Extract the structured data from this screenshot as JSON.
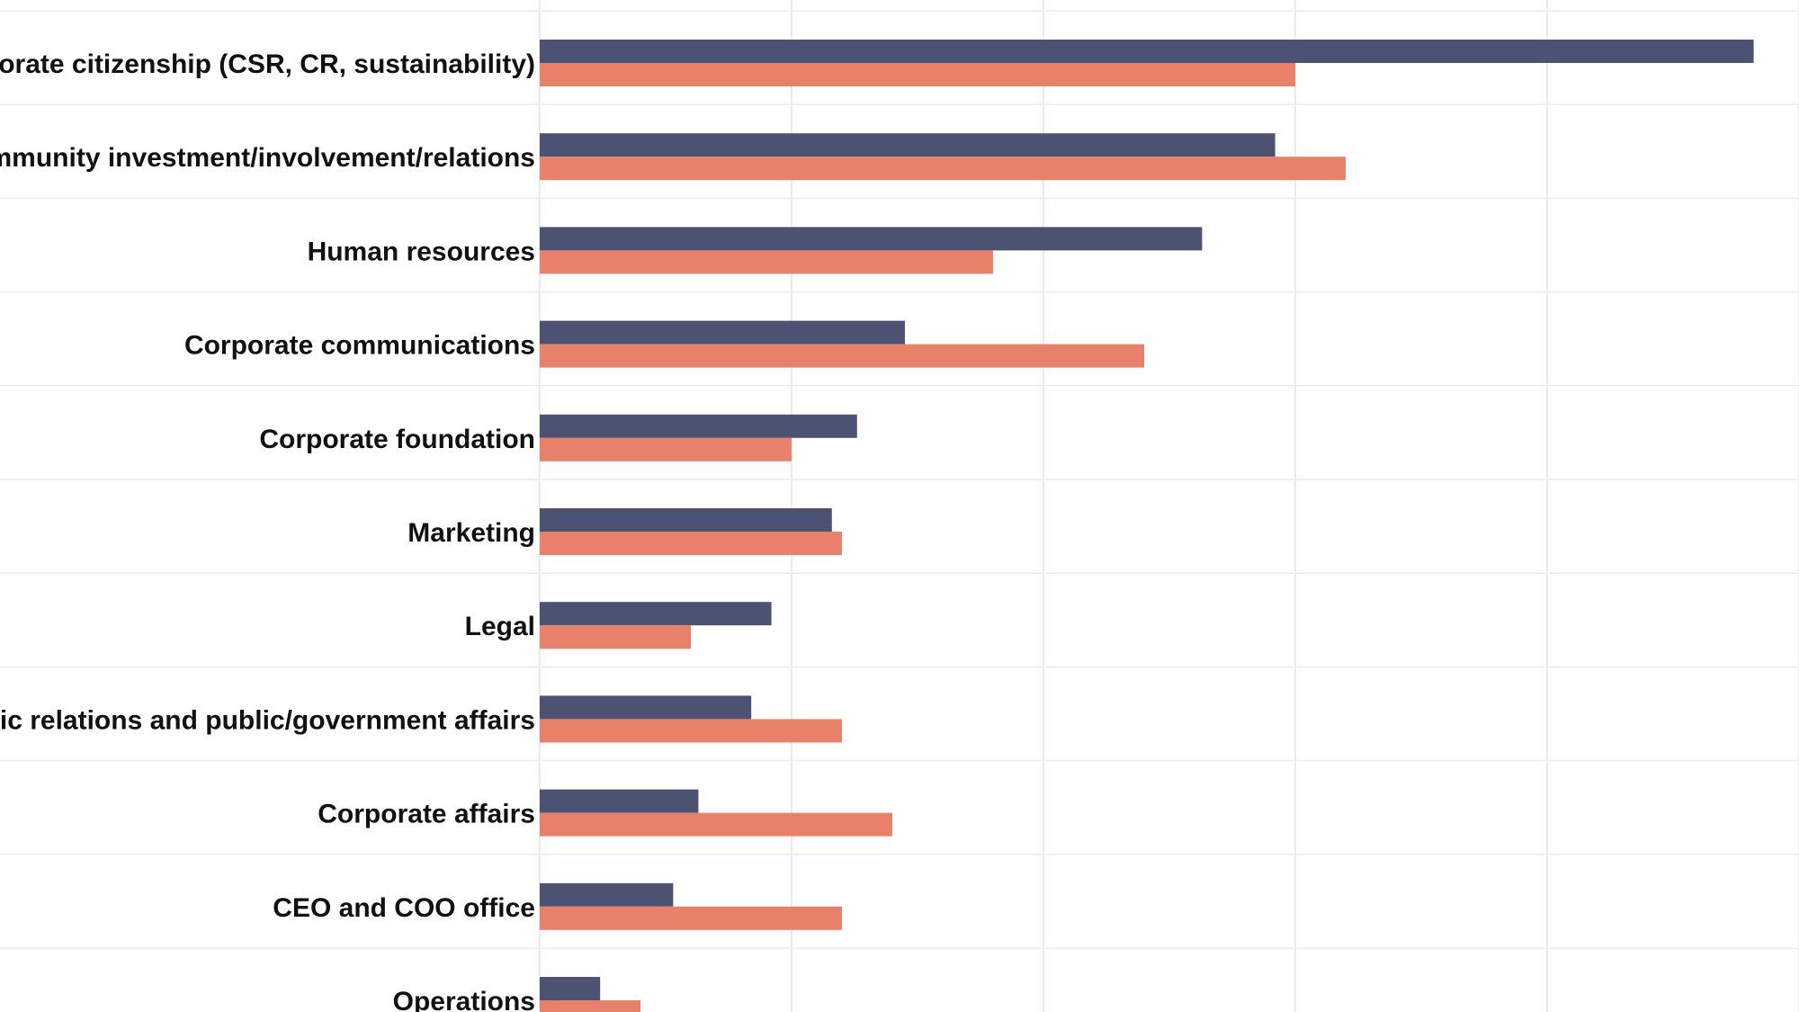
{
  "chart_data": {
    "type": "bar",
    "orientation": "horizontal",
    "categories": [
      "Corporate citizenship (CSR, CR, sustainability)",
      "Community investment/involvement/relations",
      "Human resources",
      "Corporate communications",
      "Corporate foundation",
      "Marketing",
      "Legal",
      "Public relations and public/government affairs",
      "Corporate affairs",
      "CEO and COO office",
      "Operations"
    ],
    "series": [
      {
        "color": "#4b5272",
        "values": [
          48.2,
          29.2,
          26.3,
          14.5,
          12.6,
          11.6,
          9.2,
          8.4,
          6.3,
          5.3,
          2.4
        ]
      },
      {
        "color": "#e8806a",
        "values": [
          30.0,
          32.0,
          18.0,
          24.0,
          10.0,
          12.0,
          6.0,
          12.0,
          14.0,
          12.0,
          4.0
        ]
      }
    ],
    "xlim": [
      0,
      50
    ],
    "grid": true,
    "legend": "none",
    "title": "",
    "xlabel": "",
    "ylabel": ""
  }
}
